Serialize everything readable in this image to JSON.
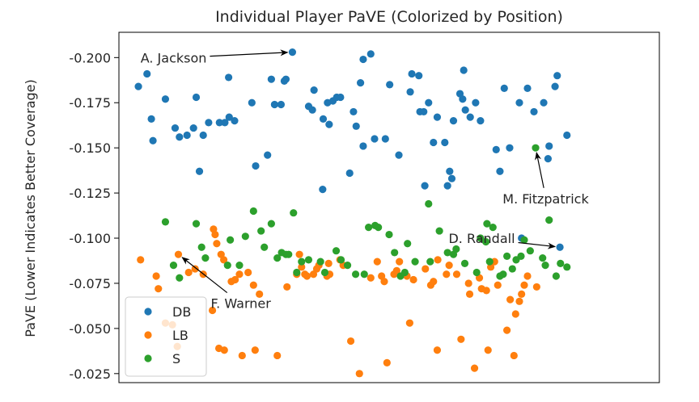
{
  "chart_data": {
    "type": "scatter",
    "title": "Individual Player PaVE (Colorized by Position)",
    "xlabel": "",
    "ylabel": "PaVE (Lower Indicates Better Coverage)",
    "y_inverted": true,
    "ylim": [
      -0.214,
      -0.02
    ],
    "xlim": [
      0,
      100
    ],
    "y_ticks": [
      "-0.200",
      "-0.175",
      "-0.150",
      "-0.125",
      "-0.100",
      "-0.075",
      "-0.050",
      "-0.025"
    ],
    "y_tick_values": [
      -0.2,
      -0.175,
      -0.15,
      -0.125,
      -0.1,
      -0.075,
      -0.05,
      -0.025
    ],
    "x_ticks_shown": false,
    "grid": false,
    "legend_position": "lower-left",
    "series": [
      {
        "name": "DB",
        "color": "#1f77b4",
        "points": [
          [
            3.6,
            -0.184
          ],
          [
            5.2,
            -0.191
          ],
          [
            6.0,
            -0.166
          ],
          [
            6.3,
            -0.154
          ],
          [
            8.6,
            -0.177
          ],
          [
            10.4,
            -0.161
          ],
          [
            11.2,
            -0.156
          ],
          [
            12.6,
            -0.157
          ],
          [
            13.8,
            -0.161
          ],
          [
            14.3,
            -0.178
          ],
          [
            14.9,
            -0.137
          ],
          [
            15.6,
            -0.157
          ],
          [
            16.6,
            -0.164
          ],
          [
            18.6,
            -0.164
          ],
          [
            19.6,
            -0.164
          ],
          [
            20.3,
            -0.189
          ],
          [
            20.4,
            -0.167
          ],
          [
            21.4,
            -0.165
          ],
          [
            24.6,
            -0.175
          ],
          [
            25.3,
            -0.14
          ],
          [
            27.5,
            -0.146
          ],
          [
            28.2,
            -0.188
          ],
          [
            28.8,
            -0.174
          ],
          [
            30.0,
            -0.174
          ],
          [
            30.6,
            -0.187
          ],
          [
            30.9,
            -0.188
          ],
          [
            32.1,
            -0.203
          ],
          [
            35.1,
            -0.173
          ],
          [
            35.8,
            -0.171
          ],
          [
            36.1,
            -0.182
          ],
          [
            37.7,
            -0.127
          ],
          [
            37.8,
            -0.166
          ],
          [
            38.6,
            -0.175
          ],
          [
            38.9,
            -0.163
          ],
          [
            39.6,
            -0.176
          ],
          [
            40.3,
            -0.178
          ],
          [
            41.0,
            -0.178
          ],
          [
            42.7,
            -0.136
          ],
          [
            43.4,
            -0.17
          ],
          [
            43.9,
            -0.162
          ],
          [
            44.7,
            -0.186
          ],
          [
            45.2,
            -0.199
          ],
          [
            45.2,
            -0.151
          ],
          [
            46.6,
            -0.202
          ],
          [
            47.3,
            -0.155
          ],
          [
            49.3,
            -0.155
          ],
          [
            50.1,
            -0.185
          ],
          [
            51.8,
            -0.146
          ],
          [
            53.9,
            -0.181
          ],
          [
            54.2,
            -0.191
          ],
          [
            55.5,
            -0.19
          ],
          [
            55.7,
            -0.17
          ],
          [
            56.4,
            -0.17
          ],
          [
            56.6,
            -0.129
          ],
          [
            57.3,
            -0.175
          ],
          [
            58.2,
            -0.153
          ],
          [
            58.9,
            -0.167
          ],
          [
            60.3,
            -0.153
          ],
          [
            60.8,
            -0.129
          ],
          [
            61.2,
            -0.137
          ],
          [
            61.6,
            -0.133
          ],
          [
            61.9,
            -0.165
          ],
          [
            63.1,
            -0.18
          ],
          [
            63.6,
            -0.177
          ],
          [
            63.8,
            -0.193
          ],
          [
            64.1,
            -0.171
          ],
          [
            65.0,
            -0.167
          ],
          [
            66.0,
            -0.175
          ],
          [
            66.9,
            -0.165
          ],
          [
            69.8,
            -0.149
          ],
          [
            70.5,
            -0.137
          ],
          [
            71.3,
            -0.183
          ],
          [
            72.3,
            -0.15
          ],
          [
            74.1,
            -0.175
          ],
          [
            74.5,
            -0.1
          ],
          [
            75.6,
            -0.183
          ],
          [
            76.8,
            -0.17
          ],
          [
            78.6,
            -0.175
          ],
          [
            79.4,
            -0.144
          ],
          [
            79.6,
            -0.151
          ],
          [
            80.7,
            -0.184
          ],
          [
            81.1,
            -0.19
          ],
          [
            82.9,
            -0.157
          ],
          [
            81.6,
            -0.095
          ]
        ]
      },
      {
        "name": "LB",
        "color": "#ff7f0e",
        "points": [
          [
            4.0,
            -0.088
          ],
          [
            6.9,
            -0.079
          ],
          [
            7.3,
            -0.072
          ],
          [
            8.6,
            -0.053
          ],
          [
            9.9,
            -0.052
          ],
          [
            10.8,
            -0.04
          ],
          [
            11.0,
            -0.091
          ],
          [
            12.9,
            -0.081
          ],
          [
            14.1,
            -0.083
          ],
          [
            15.6,
            -0.08
          ],
          [
            17.3,
            -0.06
          ],
          [
            17.5,
            -0.105
          ],
          [
            17.8,
            -0.102
          ],
          [
            18.1,
            -0.097
          ],
          [
            18.9,
            -0.091
          ],
          [
            18.5,
            -0.039
          ],
          [
            19.4,
            -0.088
          ],
          [
            19.5,
            -0.038
          ],
          [
            20.8,
            -0.076
          ],
          [
            21.5,
            -0.077
          ],
          [
            22.3,
            -0.08
          ],
          [
            22.8,
            -0.035
          ],
          [
            23.9,
            -0.081
          ],
          [
            24.9,
            -0.074
          ],
          [
            25.2,
            -0.038
          ],
          [
            26.0,
            -0.069
          ],
          [
            29.3,
            -0.035
          ],
          [
            31.1,
            -0.073
          ],
          [
            32.9,
            -0.08
          ],
          [
            33.4,
            -0.091
          ],
          [
            33.8,
            -0.084
          ],
          [
            34.4,
            -0.08
          ],
          [
            34.8,
            -0.079
          ],
          [
            36.0,
            -0.08
          ],
          [
            36.6,
            -0.083
          ],
          [
            37.0,
            -0.085
          ],
          [
            38.5,
            -0.079
          ],
          [
            38.8,
            -0.086
          ],
          [
            39.0,
            -0.08
          ],
          [
            40.9,
            -0.088
          ],
          [
            41.5,
            -0.085
          ],
          [
            42.9,
            -0.043
          ],
          [
            44.5,
            -0.025
          ],
          [
            46.6,
            -0.078
          ],
          [
            47.8,
            -0.087
          ],
          [
            48.6,
            -0.079
          ],
          [
            49.1,
            -0.076
          ],
          [
            49.6,
            -0.031
          ],
          [
            50.9,
            -0.08
          ],
          [
            51.4,
            -0.082
          ],
          [
            51.9,
            -0.087
          ],
          [
            53.3,
            -0.079
          ],
          [
            53.8,
            -0.053
          ],
          [
            54.5,
            -0.077
          ],
          [
            56.7,
            -0.083
          ],
          [
            57.7,
            -0.074
          ],
          [
            58.2,
            -0.076
          ],
          [
            58.9,
            -0.038
          ],
          [
            59.0,
            -0.088
          ],
          [
            60.6,
            -0.08
          ],
          [
            61.1,
            -0.085
          ],
          [
            62.5,
            -0.08
          ],
          [
            63.3,
            -0.044
          ],
          [
            64.7,
            -0.075
          ],
          [
            64.9,
            -0.069
          ],
          [
            65.8,
            -0.028
          ],
          [
            66.7,
            -0.078
          ],
          [
            67.1,
            -0.072
          ],
          [
            68.0,
            -0.071
          ],
          [
            68.3,
            -0.038
          ],
          [
            68.8,
            -0.084
          ],
          [
            69.5,
            -0.087
          ],
          [
            70.1,
            -0.074
          ],
          [
            71.8,
            -0.049
          ],
          [
            72.4,
            -0.066
          ],
          [
            73.1,
            -0.035
          ],
          [
            73.4,
            -0.058
          ],
          [
            74.1,
            -0.065
          ],
          [
            74.5,
            -0.069
          ],
          [
            75.0,
            -0.074
          ],
          [
            75.6,
            -0.079
          ],
          [
            77.3,
            -0.073
          ]
        ]
      },
      {
        "name": "S",
        "color": "#2ca02c",
        "points": [
          [
            8.6,
            -0.109
          ],
          [
            10.1,
            -0.085
          ],
          [
            11.2,
            -0.078
          ],
          [
            14.3,
            -0.108
          ],
          [
            15.3,
            -0.095
          ],
          [
            16.0,
            -0.089
          ],
          [
            20.1,
            -0.085
          ],
          [
            20.6,
            -0.099
          ],
          [
            22.3,
            -0.085
          ],
          [
            23.4,
            -0.101
          ],
          [
            24.9,
            -0.115
          ],
          [
            26.3,
            -0.104
          ],
          [
            26.9,
            -0.095
          ],
          [
            28.2,
            -0.108
          ],
          [
            29.3,
            -0.089
          ],
          [
            30.1,
            -0.092
          ],
          [
            30.9,
            -0.091
          ],
          [
            31.4,
            -0.091
          ],
          [
            32.3,
            -0.114
          ],
          [
            32.9,
            -0.081
          ],
          [
            33.8,
            -0.087
          ],
          [
            35.1,
            -0.088
          ],
          [
            37.3,
            -0.087
          ],
          [
            38.1,
            -0.081
          ],
          [
            40.2,
            -0.093
          ],
          [
            41.1,
            -0.088
          ],
          [
            42.3,
            -0.085
          ],
          [
            43.8,
            -0.08
          ],
          [
            45.4,
            -0.08
          ],
          [
            46.2,
            -0.106
          ],
          [
            47.4,
            -0.107
          ],
          [
            48.0,
            -0.106
          ],
          [
            50.0,
            -0.102
          ],
          [
            51.0,
            -0.092
          ],
          [
            52.1,
            -0.079
          ],
          [
            52.9,
            -0.081
          ],
          [
            53.4,
            -0.097
          ],
          [
            54.8,
            -0.087
          ],
          [
            57.3,
            -0.119
          ],
          [
            57.6,
            -0.087
          ],
          [
            59.3,
            -0.104
          ],
          [
            60.8,
            -0.092
          ],
          [
            61.9,
            -0.091
          ],
          [
            62.4,
            -0.094
          ],
          [
            64.0,
            -0.086
          ],
          [
            66.2,
            -0.081
          ],
          [
            66.9,
            -0.1
          ],
          [
            67.9,
            -0.098
          ],
          [
            68.1,
            -0.108
          ],
          [
            68.6,
            -0.087
          ],
          [
            69.2,
            -0.106
          ],
          [
            70.5,
            -0.079
          ],
          [
            71.1,
            -0.08
          ],
          [
            71.8,
            -0.09
          ],
          [
            72.8,
            -0.083
          ],
          [
            73.5,
            -0.088
          ],
          [
            74.4,
            -0.09
          ],
          [
            75.0,
            -0.099
          ],
          [
            76.1,
            -0.093
          ],
          [
            77.1,
            -0.15
          ],
          [
            78.4,
            -0.089
          ],
          [
            78.9,
            -0.085
          ],
          [
            79.6,
            -0.11
          ],
          [
            80.9,
            -0.079
          ],
          [
            81.7,
            -0.086
          ],
          [
            82.9,
            -0.084
          ]
        ]
      }
    ],
    "annotations": [
      {
        "text": "A. Jackson",
        "target": [
          32.1,
          -0.203
        ],
        "text_pos": [
          4.0,
          -0.2
        ]
      },
      {
        "text": "M. Fitzpatrick",
        "target": [
          77.1,
          -0.15
        ],
        "text_pos": [
          71.0,
          -0.122
        ]
      },
      {
        "text": "D. Randall",
        "target": [
          81.6,
          -0.095
        ],
        "text_pos": [
          61.0,
          -0.1
        ]
      },
      {
        "text": "F. Warner",
        "target": [
          11.0,
          -0.091
        ],
        "text_pos": [
          17.0,
          -0.064
        ]
      }
    ]
  }
}
